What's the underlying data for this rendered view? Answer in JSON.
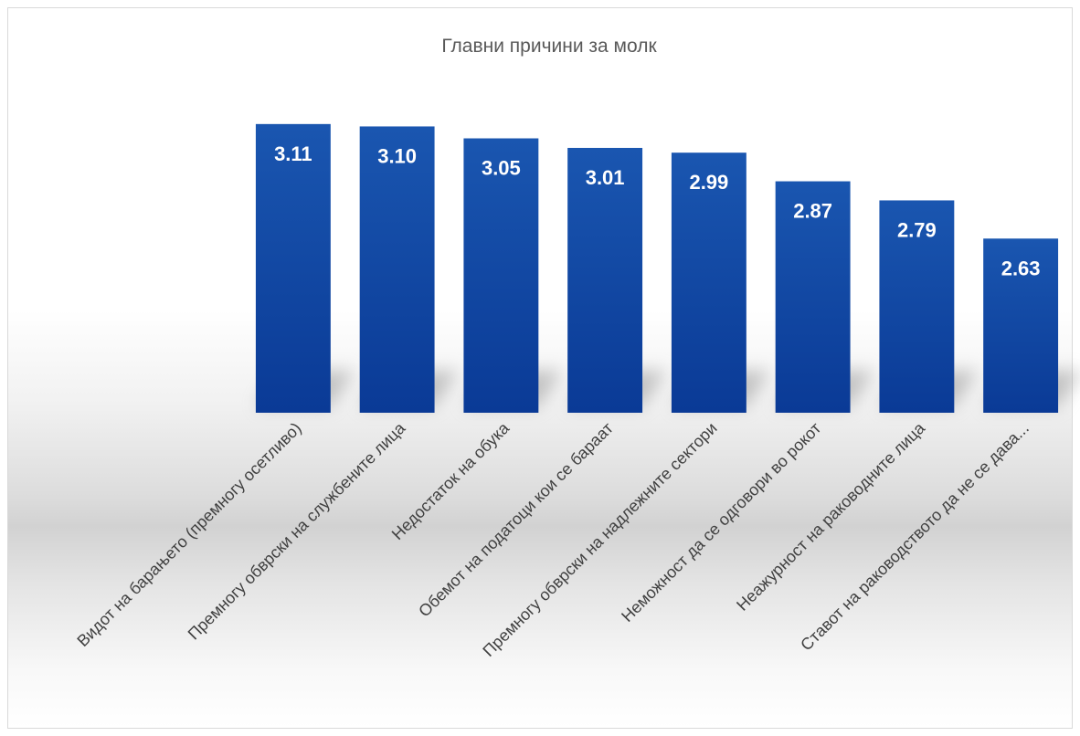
{
  "chart_data": {
    "type": "bar",
    "title": "Главни причини за молк",
    "categories": [
      "Видот на барањето (премногу осетливо)",
      "Премногу обврски на службените лица",
      "Недостаток на обука",
      "Обемот на податоци кои се бараат",
      "Премногу обврски на надлежните сектори",
      "Неможност да се одговори во рокот",
      "Неажурност на раководните лица",
      "Ставот на раководството да не се дава..."
    ],
    "values": [
      3.11,
      3.1,
      3.05,
      3.01,
      2.99,
      2.87,
      2.79,
      2.63
    ],
    "value_labels": [
      "3.11",
      "3.10",
      "3.05",
      "3.01",
      "2.99",
      "2.87",
      "2.79",
      "2.63"
    ],
    "xlabel": "",
    "ylabel": "",
    "ylim": [
      1.9,
      3.14
    ],
    "grid": false,
    "legend": "none",
    "colors": {
      "bar_top": "#1a56b0",
      "bar_bottom": "#0a3a96",
      "label": "#ffffff"
    }
  }
}
